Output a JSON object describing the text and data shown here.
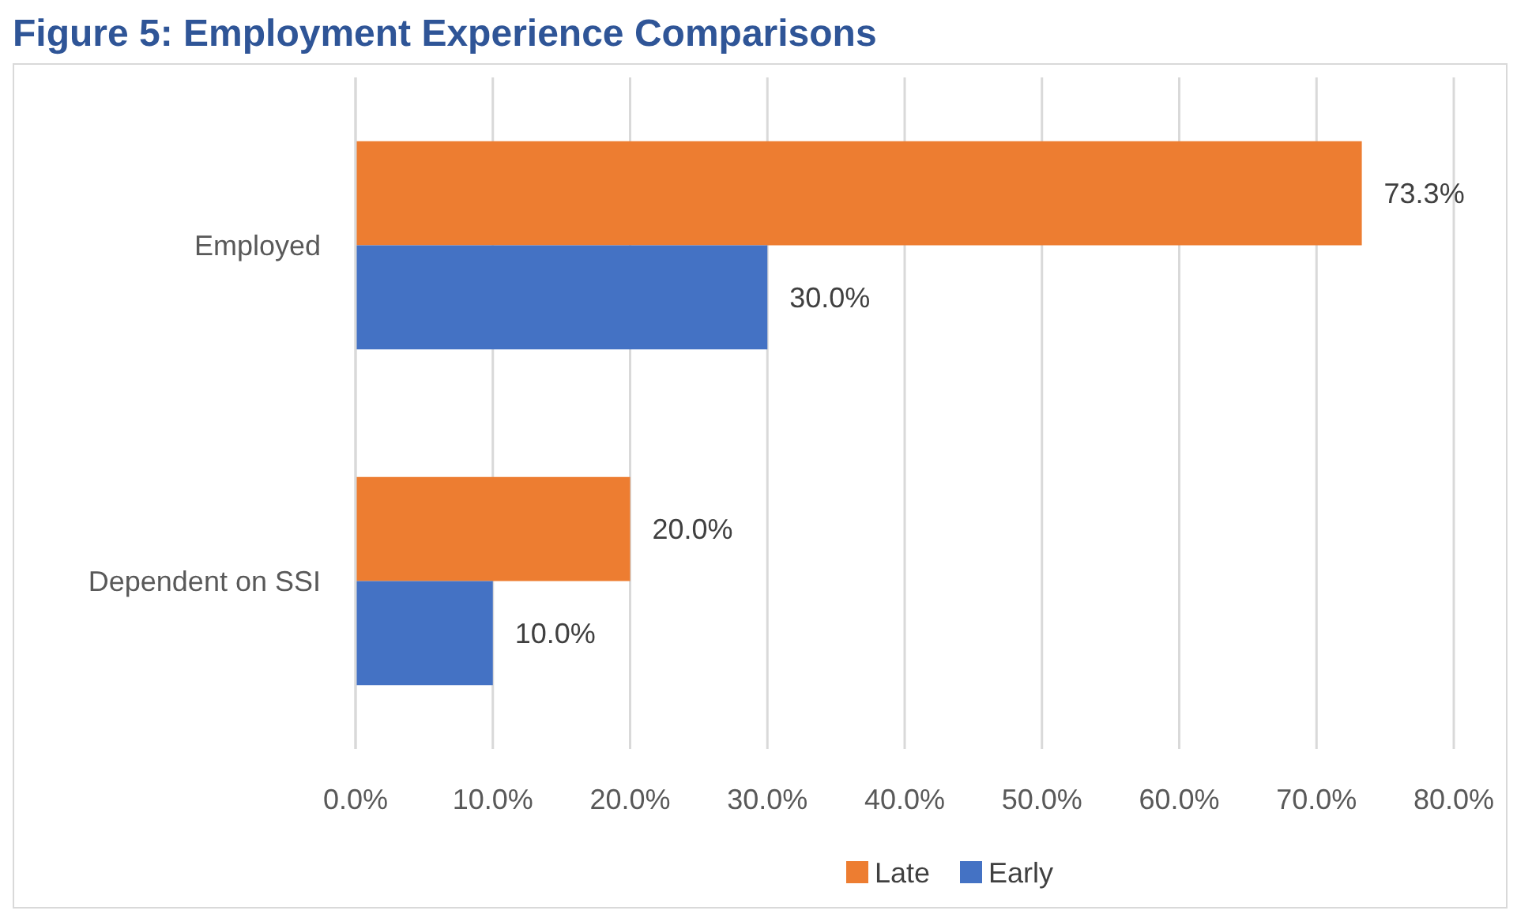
{
  "chart_data": {
    "type": "bar",
    "orientation": "horizontal",
    "title": "Figure 5: Employment Experience Comparisons",
    "categories": [
      "Employed",
      "Dependent on SSI"
    ],
    "series": [
      {
        "name": "Late",
        "color": "#ed7d31",
        "values": [
          73.3,
          20.0
        ],
        "value_labels": [
          "73.3%",
          "20.0%"
        ]
      },
      {
        "name": "Early",
        "color": "#4472c4",
        "values": [
          30.0,
          10.0
        ],
        "value_labels": [
          "30.0%",
          "10.0%"
        ]
      }
    ],
    "xlim": [
      0,
      80
    ],
    "xticks": [
      {
        "value": 0,
        "label": "0.0%"
      },
      {
        "value": 10,
        "label": "10.0%"
      },
      {
        "value": 20,
        "label": "20.0%"
      },
      {
        "value": 30,
        "label": "30.0%"
      },
      {
        "value": 40,
        "label": "40.0%"
      },
      {
        "value": 50,
        "label": "50.0%"
      },
      {
        "value": 60,
        "label": "60.0%"
      },
      {
        "value": 70,
        "label": "70.0%"
      },
      {
        "value": 80,
        "label": "80.0%"
      }
    ],
    "grid": "x",
    "legend": "bottom"
  }
}
